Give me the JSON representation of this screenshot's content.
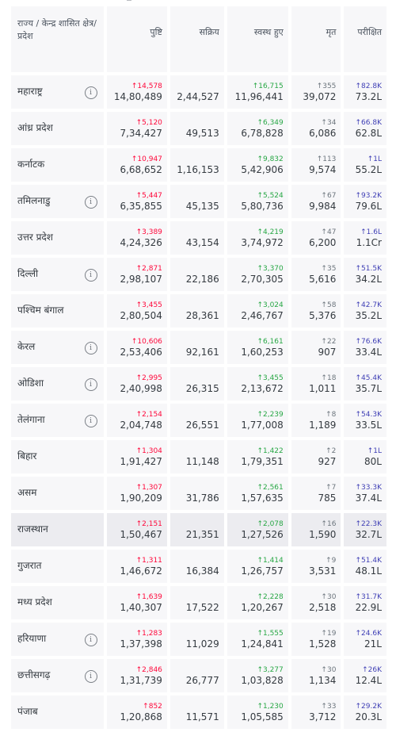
{
  "header": {
    "state": "राज्य / केन्द्र शासित क्षेत्र/ प्रदेश",
    "confirmed": "पुष्टि",
    "active": "सक्रिय",
    "recovered": "स्वस्थ हुए",
    "deceased": "मृत",
    "tested": "परीक्षित"
  },
  "info_glyph": "i",
  "rows": [
    {
      "name": "महाराष्ट्र",
      "info": true,
      "cd": "↑14,578",
      "c": "14,80,489",
      "a": "2,44,527",
      "rd": "↑16,715",
      "r": "11,96,441",
      "dd": "↑355",
      "d": "39,072",
      "td": "↑82.8K",
      "t": "73.2L"
    },
    {
      "name": "आंध्र प्रदेश",
      "info": false,
      "cd": "↑5,120",
      "c": "7,34,427",
      "a": "49,513",
      "rd": "↑6,349",
      "r": "6,78,828",
      "dd": "↑34",
      "d": "6,086",
      "td": "↑66.8K",
      "t": "62.8L"
    },
    {
      "name": "कर्नाटक",
      "info": false,
      "cd": "↑10,947",
      "c": "6,68,652",
      "a": "1,16,153",
      "rd": "↑9,832",
      "r": "5,42,906",
      "dd": "↑113",
      "d": "9,574",
      "td": "↑1L",
      "t": "55.2L"
    },
    {
      "name": "तमिलनाडु",
      "info": true,
      "cd": "↑5,447",
      "c": "6,35,855",
      "a": "45,135",
      "rd": "↑5,524",
      "r": "5,80,736",
      "dd": "↑67",
      "d": "9,984",
      "td": "↑93.2K",
      "t": "79.6L"
    },
    {
      "name": "उत्तर प्रदेश",
      "info": false,
      "cd": "↑3,389",
      "c": "4,24,326",
      "a": "43,154",
      "rd": "↑4,219",
      "r": "3,74,972",
      "dd": "↑47",
      "d": "6,200",
      "td": "↑1.6L",
      "t": "1.1Cr"
    },
    {
      "name": "दिल्ली",
      "info": true,
      "cd": "↑2,871",
      "c": "2,98,107",
      "a": "22,186",
      "rd": "↑3,370",
      "r": "2,70,305",
      "dd": "↑35",
      "d": "5,616",
      "td": "↑51.5K",
      "t": "34.2L"
    },
    {
      "name": "पश्चिम बंगाल",
      "info": false,
      "cd": "↑3,455",
      "c": "2,80,504",
      "a": "28,361",
      "rd": "↑3,024",
      "r": "2,46,767",
      "dd": "↑58",
      "d": "5,376",
      "td": "↑42.7K",
      "t": "35.2L"
    },
    {
      "name": "केरल",
      "info": true,
      "cd": "↑10,606",
      "c": "2,53,406",
      "a": "92,161",
      "rd": "↑6,161",
      "r": "1,60,253",
      "dd": "↑22",
      "d": "907",
      "td": "↑76.6K",
      "t": "33.4L"
    },
    {
      "name": "ओडिशा",
      "info": true,
      "cd": "↑2,995",
      "c": "2,40,998",
      "a": "26,315",
      "rd": "↑3,455",
      "r": "2,13,672",
      "dd": "↑18",
      "d": "1,011",
      "td": "↑45.4K",
      "t": "35.7L"
    },
    {
      "name": "तेलंगाना",
      "info": true,
      "cd": "↑2,154",
      "c": "2,04,748",
      "a": "26,551",
      "rd": "↑2,239",
      "r": "1,77,008",
      "dd": "↑8",
      "d": "1,189",
      "td": "↑54.3K",
      "t": "33.5L"
    },
    {
      "name": "बिहार",
      "info": false,
      "cd": "↑1,304",
      "c": "1,91,427",
      "a": "11,148",
      "rd": "↑1,422",
      "r": "1,79,351",
      "dd": "↑2",
      "d": "927",
      "td": "↑1L",
      "t": "80L"
    },
    {
      "name": "असम",
      "info": false,
      "cd": "↑1,307",
      "c": "1,90,209",
      "a": "31,786",
      "rd": "↑2,561",
      "r": "1,57,635",
      "dd": "↑7",
      "d": "785",
      "td": "↑33.3K",
      "t": "37.4L"
    },
    {
      "name": "राजस्थान",
      "info": false,
      "cd": "↑2,151",
      "c": "1,50,467",
      "a": "21,351",
      "rd": "↑2,078",
      "r": "1,27,526",
      "dd": "↑16",
      "d": "1,590",
      "td": "↑22.3K",
      "t": "32.7L"
    },
    {
      "name": "गुजरात",
      "info": false,
      "cd": "↑1,311",
      "c": "1,46,672",
      "a": "16,384",
      "rd": "↑1,414",
      "r": "1,26,757",
      "dd": "↑9",
      "d": "3,531",
      "td": "↑51.4K",
      "t": "48.1L"
    },
    {
      "name": "मध्य प्रदेश",
      "info": false,
      "cd": "↑1,639",
      "c": "1,40,307",
      "a": "17,522",
      "rd": "↑2,228",
      "r": "1,20,267",
      "dd": "↑30",
      "d": "2,518",
      "td": "↑31.7K",
      "t": "22.9L"
    },
    {
      "name": "हरियाणा",
      "info": true,
      "cd": "↑1,283",
      "c": "1,37,398",
      "a": "11,029",
      "rd": "↑1,555",
      "r": "1,24,841",
      "dd": "↑19",
      "d": "1,528",
      "td": "↑24.6K",
      "t": "21L"
    },
    {
      "name": "छत्तीसगढ़",
      "info": true,
      "cd": "↑2,846",
      "c": "1,31,739",
      "a": "26,777",
      "rd": "↑3,277",
      "r": "1,03,828",
      "dd": "↑30",
      "d": "1,134",
      "td": "↑26K",
      "t": "12.4L"
    },
    {
      "name": "पंजाब",
      "info": false,
      "cd": "↑852",
      "c": "1,20,868",
      "a": "11,571",
      "rd": "↑1,230",
      "r": "1,05,585",
      "dd": "↑33",
      "d": "3,712",
      "td": "↑29.2K",
      "t": "20.3L"
    }
  ],
  "highlighted_row": "राजस्थान",
  "colors": {
    "confirmed": "#ff073a",
    "recovered": "#28a745",
    "deceased": "#6c757d",
    "tested": "#3f3fb5"
  }
}
